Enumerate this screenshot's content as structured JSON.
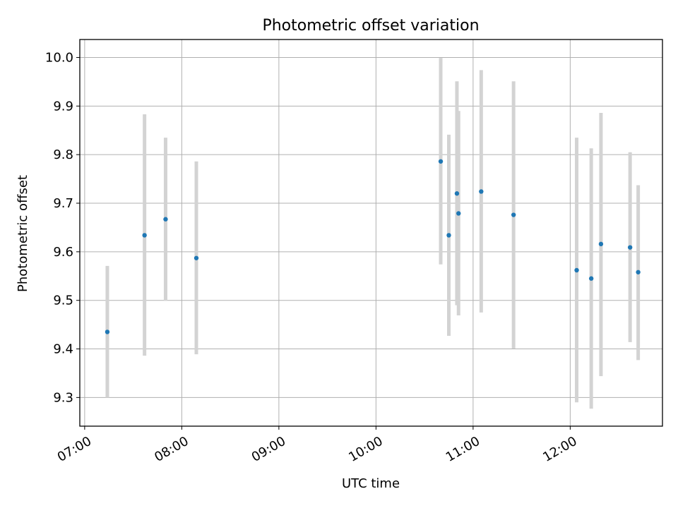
{
  "chart_data": {
    "type": "scatter",
    "title": "Photometric offset variation",
    "xlabel": "UTC time",
    "ylabel": "Photometric offset",
    "x_tick_labels": [
      "07:00",
      "08:00",
      "09:00",
      "10:00",
      "11:00",
      "12:00"
    ],
    "x_ticks": [
      "07:00",
      "08:00",
      "09:00",
      "10:00",
      "11:00",
      "12:00"
    ],
    "y_ticks": [
      9.3,
      9.4,
      9.5,
      9.6,
      9.7,
      9.8,
      9.9,
      10.0
    ],
    "y_tick_labels": [
      "9.3",
      "9.4",
      "9.5",
      "9.6",
      "9.7",
      "9.8",
      "9.9",
      "10.0"
    ],
    "xlim": [
      "06:57",
      "12:57"
    ],
    "ylim": [
      9.241,
      10.037
    ],
    "grid": true,
    "error_bars": true,
    "point_color": "#1f77b4",
    "error_color": "#d3d3d3",
    "points": [
      {
        "x": "07:14",
        "y": 9.435,
        "low": 9.3,
        "high": 9.571
      },
      {
        "x": "07:37",
        "y": 9.634,
        "low": 9.386,
        "high": 9.883
      },
      {
        "x": "07:50",
        "y": 9.667,
        "low": 9.499,
        "high": 9.835
      },
      {
        "x": "08:09",
        "y": 9.587,
        "low": 9.389,
        "high": 9.786
      },
      {
        "x": "10:40",
        "y": 9.786,
        "low": 9.574,
        "high": 9.999
      },
      {
        "x": "10:45",
        "y": 9.634,
        "low": 9.427,
        "high": 9.841
      },
      {
        "x": "10:50",
        "y": 9.72,
        "low": 9.49,
        "high": 9.951
      },
      {
        "x": "10:51",
        "y": 9.679,
        "low": 9.469,
        "high": 9.89
      },
      {
        "x": "11:05",
        "y": 9.724,
        "low": 9.475,
        "high": 9.974
      },
      {
        "x": "11:25",
        "y": 9.676,
        "low": 9.401,
        "high": 9.951
      },
      {
        "x": "12:04",
        "y": 9.562,
        "low": 9.29,
        "high": 9.835
      },
      {
        "x": "12:13",
        "y": 9.545,
        "low": 9.277,
        "high": 9.813
      },
      {
        "x": "12:19",
        "y": 9.616,
        "low": 9.344,
        "high": 9.886
      },
      {
        "x": "12:37",
        "y": 9.609,
        "low": 9.414,
        "high": 9.805
      },
      {
        "x": "12:42",
        "y": 9.558,
        "low": 9.377,
        "high": 9.737
      }
    ]
  }
}
